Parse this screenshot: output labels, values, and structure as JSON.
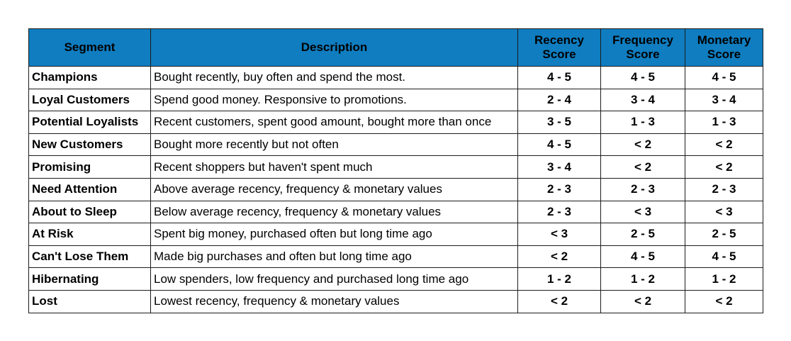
{
  "table": {
    "headers": {
      "segment": "Segment",
      "description": "Description",
      "recency_line1": "Recency",
      "recency_line2": "Score",
      "frequency_line1": "Frequency",
      "frequency_line2": "Score",
      "monetary_line1": "Monetary",
      "monetary_line2": "Score"
    },
    "header_bg": "#0f7dc0",
    "rows": [
      {
        "segment": "Champions",
        "description": "Bought recently, buy often and spend the most.",
        "recency": "4 - 5",
        "frequency": "4 - 5",
        "monetary": "4 - 5"
      },
      {
        "segment": "Loyal Customers",
        "description": "Spend good money. Responsive to promotions.",
        "recency": "2 - 4",
        "frequency": "3 - 4",
        "monetary": "3 - 4"
      },
      {
        "segment": "Potential Loyalists",
        "description": "Recent customers, spent good amount, bought more than once",
        "recency": "3 - 5",
        "frequency": "1 - 3",
        "monetary": "1 - 3"
      },
      {
        "segment": "New Customers",
        "description": "Bought more recently but not often",
        "recency": "4 - 5",
        "frequency": "< 2",
        "monetary": "< 2"
      },
      {
        "segment": "Promising",
        "description": "Recent shoppers but haven't spent much",
        "recency": "3 - 4",
        "frequency": "< 2",
        "monetary": "< 2"
      },
      {
        "segment": "Need Attention",
        "description": "Above average recency, frequency & monetary values",
        "recency": "2 - 3",
        "frequency": "2 - 3",
        "monetary": "2 - 3"
      },
      {
        "segment": "About to Sleep",
        "description": "Below average recency, frequency & monetary values",
        "recency": "2 - 3",
        "frequency": "< 3",
        "monetary": "< 3"
      },
      {
        "segment": "At Risk",
        "description": "Spent big money, purchased often but long time ago",
        "recency": "< 3",
        "frequency": "2 - 5",
        "monetary": "2 - 5"
      },
      {
        "segment": "Can't Lose Them",
        "description": "Made big purchases and often but long time ago",
        "recency": "< 2",
        "frequency": "4 - 5",
        "monetary": "4 - 5"
      },
      {
        "segment": "Hibernating",
        "description": "Low spenders, low frequency and purchased long time ago",
        "recency": "1 - 2",
        "frequency": "1 - 2",
        "monetary": "1 - 2"
      },
      {
        "segment": "Lost",
        "description": "Lowest recency, frequency & monetary values",
        "recency": "< 2",
        "frequency": "< 2",
        "monetary": "< 2"
      }
    ]
  }
}
